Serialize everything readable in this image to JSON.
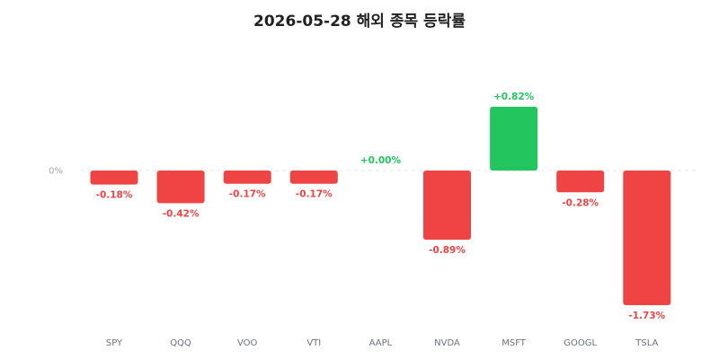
{
  "chart_data": {
    "type": "bar",
    "title": "2026-05-28 해외 종목 등락률",
    "xlabel": "",
    "ylabel": "",
    "categories": [
      "SPY",
      "QQQ",
      "VOO",
      "VTI",
      "AAPL",
      "NVDA",
      "MSFT",
      "GOOGL",
      "TSLA"
    ],
    "values": [
      -0.18,
      -0.42,
      -0.17,
      -0.17,
      0.0,
      -0.89,
      0.82,
      -0.28,
      -1.73
    ],
    "data_labels": [
      "-0.18%",
      "-0.42%",
      "-0.17%",
      "-0.17%",
      "+0.00%",
      "-0.89%",
      "+0.82%",
      "-0.28%",
      "-1.73%"
    ],
    "y_tick_labels": [
      "0%"
    ],
    "ylim": [
      -1.73,
      0.82
    ],
    "grid": false,
    "zero_line": "dashed",
    "colors": {
      "positive": "#22c55e",
      "negative": "#ef4444"
    }
  }
}
